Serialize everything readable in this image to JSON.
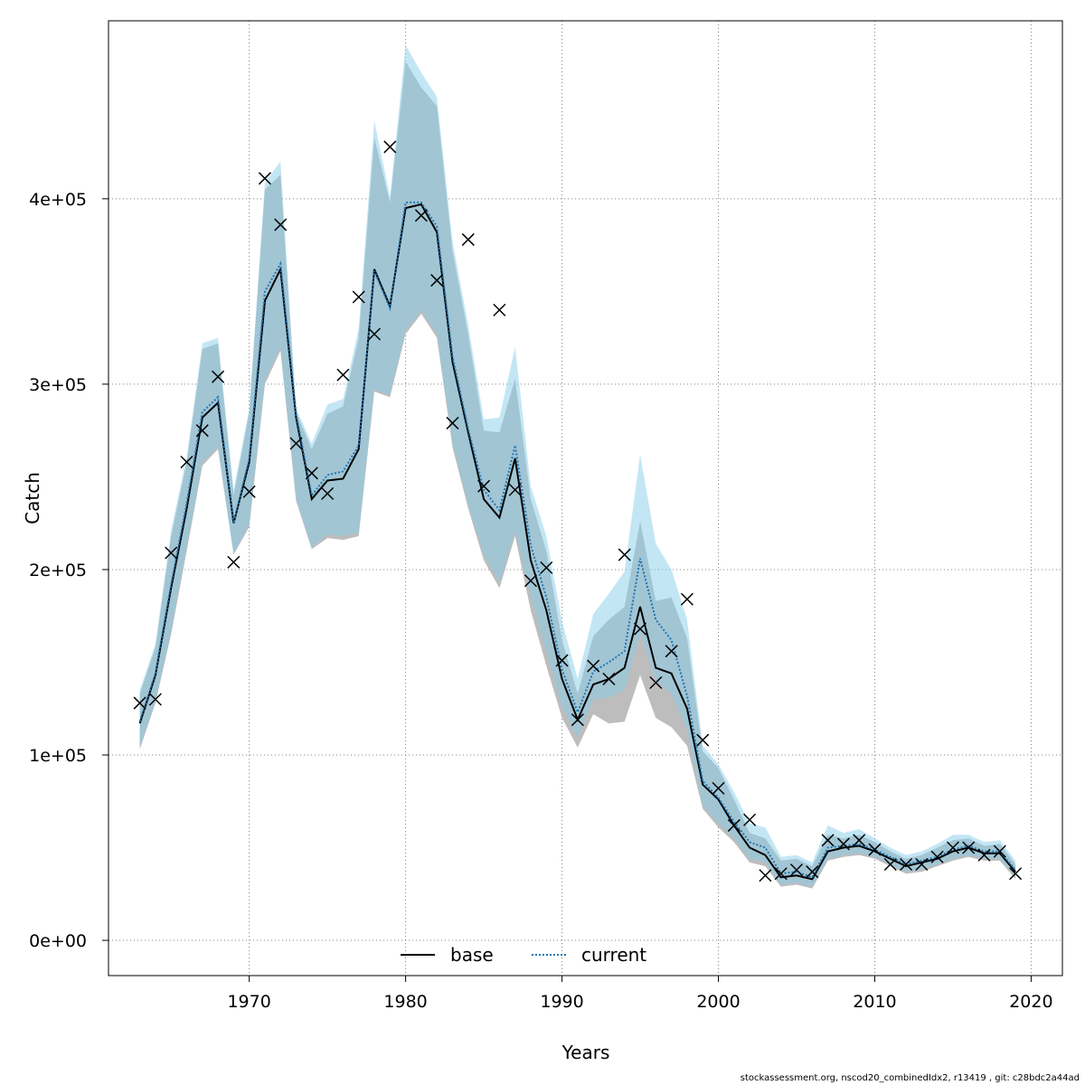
{
  "chart_data": {
    "type": "line",
    "xlabel": "Years",
    "ylabel": "Catch",
    "xlim": [
      1961,
      2022
    ],
    "ylim": [
      -19000,
      496000
    ],
    "x_ticks": [
      1970,
      1980,
      1990,
      2000,
      2010,
      2020
    ],
    "x_tick_labels": [
      "1970",
      "1980",
      "1990",
      "2000",
      "2010",
      "2020"
    ],
    "y_ticks": [
      0,
      100000,
      200000,
      300000,
      400000
    ],
    "y_tick_labels": [
      "0e+00",
      "1e+05",
      "2e+05",
      "3e+05",
      "4e+05"
    ],
    "grid": true,
    "legend_position": "bottom-center",
    "colors": {
      "base_line": "#000000",
      "current_line": "#1f77b4",
      "base_band": "#bdbdbd",
      "current_band": "#87ceeb",
      "grid": "#808080"
    },
    "years": [
      1963,
      1964,
      1965,
      1966,
      1967,
      1968,
      1969,
      1970,
      1971,
      1972,
      1973,
      1974,
      1975,
      1976,
      1977,
      1978,
      1979,
      1980,
      1981,
      1982,
      1983,
      1984,
      1985,
      1986,
      1987,
      1988,
      1989,
      1990,
      1991,
      1992,
      1993,
      1994,
      1995,
      1996,
      1997,
      1998,
      1999,
      2000,
      2001,
      2002,
      2003,
      2004,
      2005,
      2006,
      2007,
      2008,
      2009,
      2010,
      2011,
      2012,
      2013,
      2014,
      2015,
      2016,
      2017,
      2018,
      2019
    ],
    "series": [
      {
        "name": "base",
        "line_style": "solid",
        "values": [
          117000,
          143000,
          190000,
          233000,
          282000,
          290000,
          225000,
          258000,
          345000,
          362000,
          282000,
          238000,
          248000,
          249000,
          265000,
          362000,
          342000,
          395000,
          397000,
          382000,
          312000,
          274000,
          238000,
          228000,
          260000,
          205000,
          178000,
          141000,
          119000,
          138000,
          141000,
          147000,
          180000,
          147000,
          144000,
          125000,
          84000,
          76000,
          62000,
          50000,
          46000,
          34000,
          35000,
          33000,
          48000,
          50000,
          51000,
          48000,
          44000,
          40000,
          42000,
          44000,
          48000,
          50000,
          47000,
          47000,
          37000
        ],
        "lower": [
          103000,
          128000,
          165000,
          210000,
          256000,
          265000,
          208000,
          223000,
          300000,
          318000,
          237000,
          211000,
          217000,
          216000,
          218000,
          296000,
          293000,
          327000,
          338000,
          325000,
          266000,
          233000,
          205000,
          190000,
          218000,
          178000,
          148000,
          120000,
          104000,
          122000,
          117000,
          118000,
          143000,
          120000,
          115000,
          105000,
          71000,
          61000,
          53000,
          42000,
          40000,
          29000,
          30000,
          28000,
          43000,
          45000,
          46000,
          44000,
          40000,
          36000,
          37000,
          40000,
          43000,
          45000,
          43000,
          43000,
          33000
        ],
        "upper": [
          133000,
          158000,
          218000,
          258000,
          319000,
          322000,
          240000,
          285000,
          405000,
          413000,
          285000,
          265000,
          284000,
          288000,
          325000,
          433000,
          398000,
          474000,
          460000,
          450000,
          372000,
          327000,
          275000,
          274000,
          303000,
          238000,
          210000,
          162000,
          133000,
          164000,
          173000,
          180000,
          226000,
          183000,
          185000,
          163000,
          102000,
          93000,
          76000,
          58000,
          55000,
          43000,
          44000,
          40000,
          57000,
          55000,
          57000,
          53000,
          48000,
          44000,
          46000,
          50000,
          54000,
          55000,
          51000,
          52000,
          41000
        ]
      },
      {
        "name": "current",
        "line_style": "dotted",
        "values": [
          118000,
          144000,
          192000,
          236000,
          285000,
          293000,
          225000,
          260000,
          350000,
          365000,
          284000,
          240000,
          251000,
          253000,
          267000,
          361000,
          341000,
          398000,
          398000,
          385000,
          315000,
          276000,
          243000,
          232000,
          267000,
          213000,
          185000,
          146000,
          123000,
          145000,
          150000,
          156000,
          206000,
          173000,
          162000,
          132000,
          86000,
          77000,
          64000,
          53000,
          50000,
          36000,
          37000,
          34000,
          50000,
          51000,
          52000,
          49000,
          45000,
          41000,
          43000,
          45000,
          49000,
          51000,
          48000,
          48000,
          38000
        ]
      }
    ],
    "current_band": {
      "lower": [
        104000,
        129000,
        167000,
        212000,
        258000,
        266000,
        208000,
        225000,
        302000,
        320000,
        238000,
        212000,
        219000,
        218000,
        220000,
        297000,
        294000,
        329000,
        340000,
        327000,
        268000,
        235000,
        208000,
        193000,
        221000,
        185000,
        156000,
        126000,
        109000,
        130000,
        131000,
        135000,
        166000,
        140000,
        133000,
        113000,
        73000,
        63000,
        55000,
        44000,
        42000,
        30000,
        31000,
        29000,
        44000,
        46000,
        47000,
        45000,
        41000,
        37000,
        38000,
        41000,
        44000,
        46000,
        44000,
        44000,
        34000
      ],
      "upper": [
        135000,
        160000,
        221000,
        261000,
        322000,
        325000,
        243000,
        287000,
        409000,
        420000,
        287000,
        268000,
        289000,
        292000,
        330000,
        442000,
        401000,
        483000,
        468000,
        455000,
        377000,
        332000,
        281000,
        282000,
        320000,
        245000,
        218000,
        172000,
        141000,
        176000,
        187000,
        199000,
        262000,
        214000,
        200000,
        173000,
        105000,
        95000,
        80000,
        63000,
        61000,
        45000,
        46000,
        42000,
        62000,
        58000,
        60000,
        55000,
        50000,
        46000,
        48000,
        52000,
        57000,
        57000,
        53000,
        54000,
        43000
      ]
    },
    "observed": {
      "marker": "x",
      "years": [
        1963,
        1964,
        1965,
        1966,
        1967,
        1968,
        1969,
        1970,
        1971,
        1972,
        1973,
        1974,
        1975,
        1976,
        1977,
        1978,
        1979,
        1981,
        1982,
        1983,
        1984,
        1985,
        1986,
        1987,
        1988,
        1989,
        1990,
        1991,
        1992,
        1993,
        1994,
        1995,
        1996,
        1997,
        1998,
        1999,
        2000,
        2001,
        2002,
        2003,
        2004,
        2005,
        2006,
        2007,
        2008,
        2009,
        2010,
        2011,
        2012,
        2013,
        2014,
        2015,
        2016,
        2017,
        2018,
        2019
      ],
      "values": [
        128000,
        130000,
        209000,
        258000,
        275000,
        304000,
        204000,
        242000,
        411000,
        386000,
        268000,
        252000,
        241000,
        305000,
        347000,
        327000,
        428000,
        391000,
        356000,
        279000,
        378000,
        245000,
        340000,
        243000,
        194000,
        201000,
        151000,
        119000,
        148000,
        141000,
        208000,
        168000,
        139000,
        156000,
        184000,
        108000,
        82000,
        62000,
        65000,
        35000,
        36000,
        38000,
        37000,
        54000,
        52000,
        54000,
        49000,
        41000,
        41000,
        41000,
        45000,
        50000,
        50000,
        46000,
        48000,
        36000
      ]
    }
  },
  "footer": "stockassessment.org, nscod20_combinedIdx2, r13419 , git: c28bdc2a44ad"
}
